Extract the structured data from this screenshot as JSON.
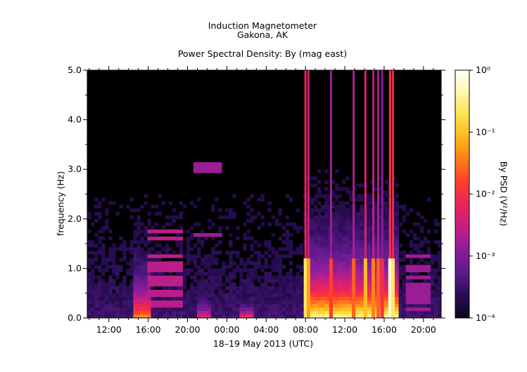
{
  "header": {
    "title": "Induction Magnetometer",
    "location": "Gakona, AK",
    "subtitle": "Power Spectral Density: By (mag east)"
  },
  "colors": {
    "background": "#000000",
    "colormap": [
      "#0a0520",
      "#2a0d55",
      "#5b1b8a",
      "#8a1d9b",
      "#c41e86",
      "#e8245d",
      "#ff3b2f",
      "#ff7a1a",
      "#ffb51a",
      "#ffe14a",
      "#fff6a8",
      "#ffffff"
    ]
  },
  "chart_data": {
    "type": "heatmap",
    "title": "Power Spectral Density: By (mag east)",
    "xlabel": "18–19 May 2013 (UTC)",
    "ylabel": "frequency (Hz)",
    "x_ticks": [
      "12:00",
      "16:00",
      "20:00",
      "00:00",
      "04:00",
      "08:00",
      "12:00",
      "16:00",
      "20:00"
    ],
    "x_tick_hours": [
      12,
      16,
      20,
      24,
      28,
      32,
      36,
      40,
      44
    ],
    "x_range_hours": [
      9.8,
      45.8
    ],
    "y_ticks": [
      "0.0",
      "1.0",
      "2.0",
      "3.0",
      "4.0",
      "5.0"
    ],
    "y_tick_values": [
      0,
      1,
      2,
      3,
      4,
      5
    ],
    "ylim": [
      0,
      5
    ],
    "colorbar": {
      "label": "By PSD (V²/Hz)",
      "scale": "log",
      "range": [
        0.0001,
        1
      ],
      "ticks": [
        "10⁻⁴",
        "10⁻³",
        "10⁻²",
        "10⁻¹",
        "10⁰"
      ],
      "tick_values": [
        0.0001,
        0.001,
        0.01,
        0.1,
        1
      ]
    },
    "features": [
      {
        "kind": "broadband_burst",
        "start_hour": 14.4,
        "end_hour": 16.2,
        "max_freq_hz": 2.4,
        "intensity": 0.65
      },
      {
        "kind": "broadband_burst",
        "start_hour": 21.0,
        "end_hour": 22.5,
        "max_freq_hz": 1.0,
        "intensity": 0.45
      },
      {
        "kind": "broadband_burst",
        "start_hour": 25.2,
        "end_hour": 26.7,
        "max_freq_hz": 0.7,
        "intensity": 0.55
      },
      {
        "kind": "broadband_burst",
        "start_hour": 32.0,
        "end_hour": 41.6,
        "max_freq_hz": 3.2,
        "intensity": 0.9
      },
      {
        "kind": "spike",
        "hour": 32.0,
        "intensity": 0.85
      },
      {
        "kind": "spike",
        "hour": 32.3,
        "intensity": 0.7
      },
      {
        "kind": "spike",
        "hour": 34.6,
        "intensity": 0.55
      },
      {
        "kind": "spike",
        "hour": 36.9,
        "intensity": 0.6
      },
      {
        "kind": "spike",
        "hour": 38.1,
        "intensity": 0.75
      },
      {
        "kind": "spike",
        "hour": 38.9,
        "intensity": 0.65
      },
      {
        "kind": "spike",
        "hour": 39.4,
        "intensity": 0.6
      },
      {
        "kind": "spike",
        "hour": 39.8,
        "intensity": 0.5
      },
      {
        "kind": "spike",
        "hour": 40.6,
        "intensity": 0.95
      },
      {
        "kind": "spike",
        "hour": 40.9,
        "intensity": 0.85
      },
      {
        "kind": "harmonic_lines",
        "start_hour": 15.8,
        "end_hour": 19.5,
        "freqs_hz": [
          0.25,
          0.35,
          0.45,
          0.55,
          0.65,
          0.75,
          0.85,
          1.0,
          1.1,
          1.25,
          1.6,
          1.75
        ],
        "intensity": 0.35
      },
      {
        "kind": "harmonic_lines",
        "start_hour": 42.2,
        "end_hour": 44.8,
        "freqs_hz": [
          0.2,
          0.3,
          0.4,
          0.5,
          0.6,
          0.7,
          0.85,
          1.0,
          1.25
        ],
        "intensity": 0.3
      },
      {
        "kind": "harmonic_lines",
        "start_hour": 20.5,
        "end_hour": 23.5,
        "freqs_hz": [
          1.7,
          3.0,
          3.1
        ],
        "intensity": 0.3
      }
    ]
  }
}
